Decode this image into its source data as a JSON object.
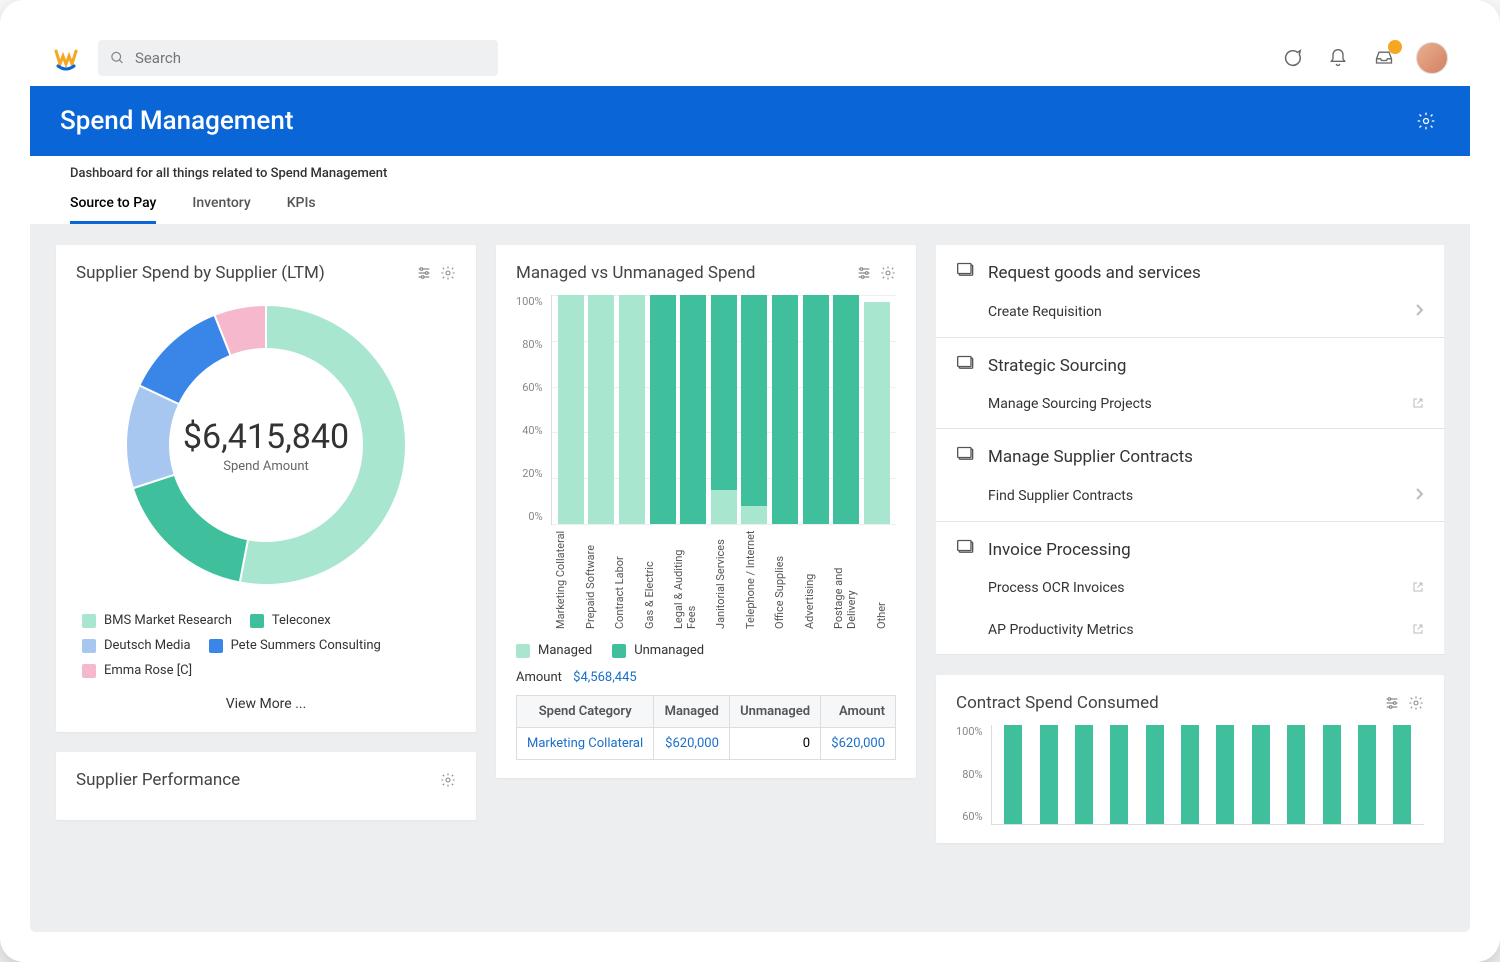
{
  "header": {
    "search_placeholder": "Search"
  },
  "banner": {
    "title": "Spend Management"
  },
  "subtitle": "Dashboard for all things related to Spend Management",
  "tabs": [
    "Source to Pay",
    "Inventory",
    "KPIs"
  ],
  "active_tab_index": 0,
  "colors": {
    "brand": "#0a66d6",
    "managed": "#a8e6d0",
    "unmanaged": "#3fbf9b",
    "grid": "#eeeeee",
    "axis_text": "#888888",
    "link": "#1a6fc9"
  },
  "donut_card": {
    "title": "Supplier Spend by Supplier (LTM)",
    "center_value": "$6,415,840",
    "center_label": "Spend Amount",
    "slices": [
      {
        "label": "BMS Market Research",
        "color": "#a8e6d0",
        "pct": 53
      },
      {
        "label": "Teleconex",
        "color": "#3fbf9b",
        "pct": 17
      },
      {
        "label": "Deutsch Media",
        "color": "#a8c7f0",
        "pct": 12
      },
      {
        "label": "Pete Summers Consulting",
        "color": "#3a86e8",
        "pct": 12
      },
      {
        "label": "Emma Rose [C]",
        "color": "#f5b8cc",
        "pct": 6
      }
    ],
    "view_more": "View More ..."
  },
  "perf_card": {
    "title": "Supplier Performance"
  },
  "stacked_card": {
    "title": "Managed vs Unmanaged Spend",
    "y_ticks": [
      "100%",
      "80%",
      "60%",
      "40%",
      "20%",
      "0%"
    ],
    "categories": [
      {
        "label": "Marketing Collateral",
        "managed": 100,
        "unmanaged": 0
      },
      {
        "label": "Prepaid Software",
        "managed": 100,
        "unmanaged": 0
      },
      {
        "label": "Contract Labor",
        "managed": 100,
        "unmanaged": 0
      },
      {
        "label": "Gas & Electric",
        "managed": 0,
        "unmanaged": 100
      },
      {
        "label": "Legal & Auditing Fees",
        "managed": 0,
        "unmanaged": 100
      },
      {
        "label": "Janitorial Services",
        "managed": 15,
        "unmanaged": 85
      },
      {
        "label": "Telephone / Internet",
        "managed": 8,
        "unmanaged": 92
      },
      {
        "label": "Office Supplies",
        "managed": 0,
        "unmanaged": 100
      },
      {
        "label": "Advertising",
        "managed": 0,
        "unmanaged": 100
      },
      {
        "label": "Postage and Delivery",
        "managed": 0,
        "unmanaged": 100
      },
      {
        "label": "Other",
        "managed": 97,
        "unmanaged": 0
      }
    ],
    "legend": [
      {
        "label": "Managed",
        "color": "#a8e6d0"
      },
      {
        "label": "Unmanaged",
        "color": "#3fbf9b"
      }
    ],
    "amount_label": "Amount",
    "amount_value": "$4,568,445",
    "table": {
      "columns": [
        "Spend Category",
        "Managed",
        "Unmanaged",
        "Amount"
      ],
      "rows": [
        {
          "cat": "Marketing Collateral",
          "managed": "$620,000",
          "unmanaged": "0",
          "amount": "$620,000"
        }
      ]
    }
  },
  "right_sections": [
    {
      "title": "Request goods and services",
      "items": [
        {
          "label": "Create Requisition",
          "action": "chev"
        }
      ]
    },
    {
      "title": "Strategic Sourcing",
      "items": [
        {
          "label": "Manage Sourcing Projects",
          "action": "ext"
        }
      ]
    },
    {
      "title": "Manage Supplier Contracts",
      "items": [
        {
          "label": "Find Supplier Contracts",
          "action": "chev"
        }
      ]
    },
    {
      "title": "Invoice Processing",
      "items": [
        {
          "label": "Process OCR Invoices",
          "action": "ext"
        },
        {
          "label": "AP Productivity Metrics",
          "action": "ext"
        }
      ]
    }
  ],
  "contract_card": {
    "title": "Contract Spend Consumed",
    "y_ticks": [
      "100%",
      "80%",
      "60%"
    ],
    "bar_color": "#3fbf9b",
    "bar_heights_pct": [
      100,
      100,
      100,
      100,
      100,
      100,
      100,
      100,
      100,
      100,
      100,
      100
    ]
  }
}
